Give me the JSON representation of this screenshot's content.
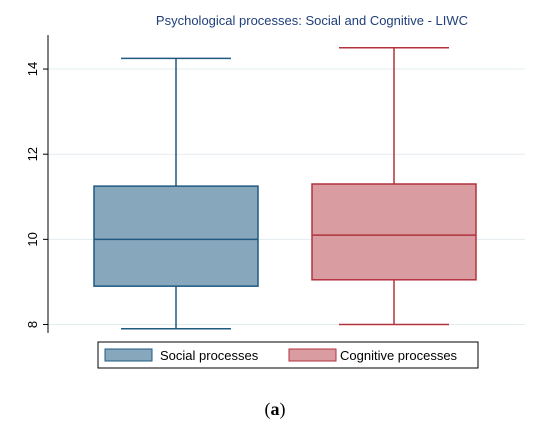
{
  "chart_data": {
    "type": "box",
    "title": "Psychological processes: Social and Cognitive - LIWC",
    "ylim": [
      7.8,
      14.8
    ],
    "yticks": [
      8,
      10,
      12,
      14
    ],
    "grid": "horizontal",
    "legend_position": "bottom",
    "series": [
      {
        "name": "Social processes",
        "color": "#87a7bd",
        "edge_color": "#1f5a80",
        "min": 7.9,
        "q1": 8.9,
        "median": 10.0,
        "q3": 11.25,
        "max": 14.25
      },
      {
        "name": "Cognitive processes",
        "color": "#d99ca0",
        "edge_color": "#b2323e",
        "min": 8.0,
        "q1": 9.05,
        "median": 10.1,
        "q3": 11.3,
        "max": 14.5
      }
    ]
  },
  "caption": {
    "open": "(",
    "letter": "a",
    "close": ")"
  }
}
